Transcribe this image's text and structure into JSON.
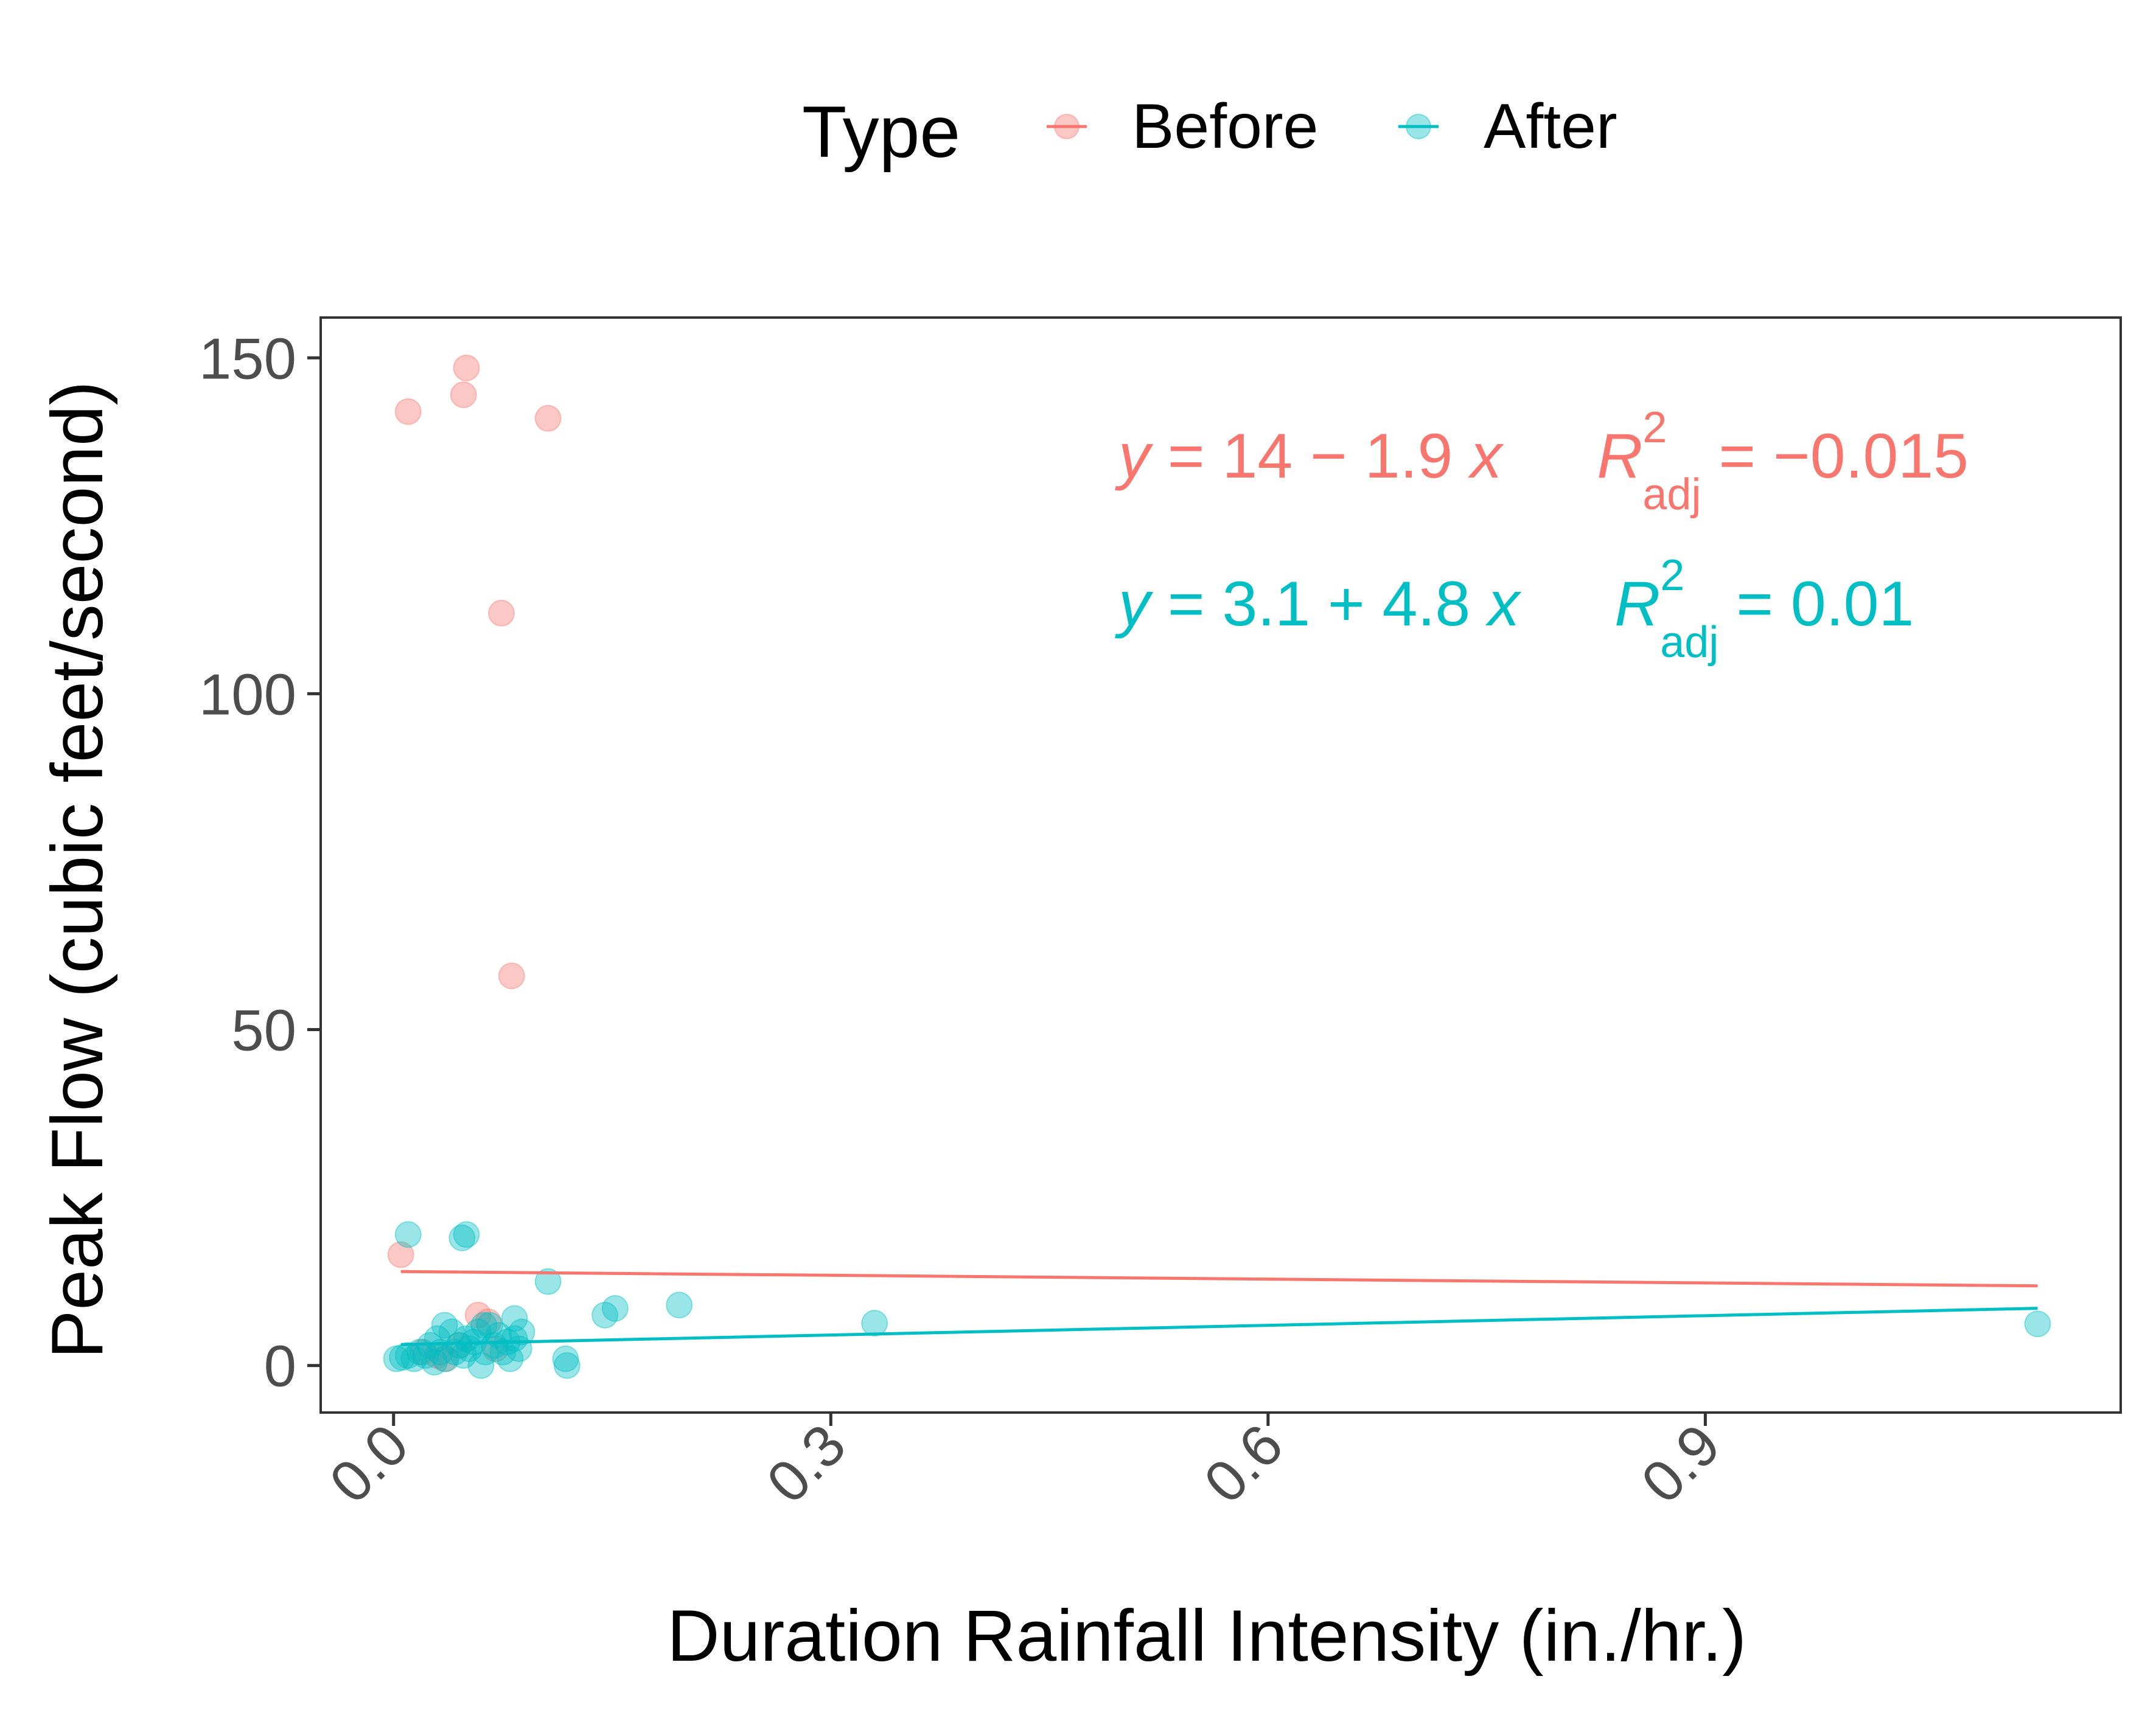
{
  "chart_data": {
    "type": "scatter",
    "title": "",
    "xlabel": "Duration Rainfall Intensity (in./hr.)",
    "ylabel": "Peak Flow (cubic feet/second)",
    "xlim": [
      -0.05,
      1.185
    ],
    "ylim": [
      -7,
      156
    ],
    "x_ticks": [
      0.0,
      0.3,
      0.6,
      0.9
    ],
    "x_tick_labels": [
      "0.0",
      "0.3",
      "0.6",
      "0.9"
    ],
    "y_ticks": [
      0,
      50,
      100,
      150
    ],
    "y_tick_labels": [
      "0",
      "50",
      "100",
      "150"
    ],
    "grid": false,
    "legend": {
      "title": "Type",
      "placement": "top",
      "entries": [
        "Before",
        "After"
      ]
    },
    "series": [
      {
        "name": "Before",
        "color": "#F8766D",
        "points": [
          [
            0.01,
            142
          ],
          [
            0.048,
            144.5
          ],
          [
            0.05,
            148.5
          ],
          [
            0.106,
            141
          ],
          [
            0.074,
            112
          ],
          [
            0.081,
            58
          ],
          [
            0.005,
            16.5
          ],
          [
            0.058,
            7.5
          ],
          [
            0.065,
            6.5
          ],
          [
            0.02,
            2
          ],
          [
            0.03,
            1.5
          ],
          [
            0.045,
            3
          ],
          [
            0.07,
            2.5
          ],
          [
            0.035,
            1
          ]
        ],
        "fit": {
          "intercept": 14,
          "slope": -1.9,
          "x_range": [
            0.005,
            1.128
          ]
        },
        "equation": {
          "y": "y",
          "eq": " = 14 − 1.9 ",
          "x": "x",
          "r": "R",
          "sup": "2",
          "sub": "adj",
          "val": " = −0.015"
        }
      },
      {
        "name": "After",
        "color": "#00BFC4",
        "points": [
          [
            0.01,
            19.5
          ],
          [
            0.047,
            19
          ],
          [
            0.05,
            19.5
          ],
          [
            0.106,
            12.5
          ],
          [
            0.083,
            7
          ],
          [
            0.062,
            6
          ],
          [
            0.035,
            6
          ],
          [
            0.002,
            1
          ],
          [
            0.006,
            1.2
          ],
          [
            0.01,
            1.5
          ],
          [
            0.014,
            1
          ],
          [
            0.018,
            2
          ],
          [
            0.022,
            1.5
          ],
          [
            0.025,
            3
          ],
          [
            0.028,
            0.5
          ],
          [
            0.03,
            4
          ],
          [
            0.032,
            2
          ],
          [
            0.036,
            1
          ],
          [
            0.04,
            5
          ],
          [
            0.042,
            2
          ],
          [
            0.045,
            3
          ],
          [
            0.048,
            1.5
          ],
          [
            0.05,
            4
          ],
          [
            0.052,
            2.5
          ],
          [
            0.055,
            3.5
          ],
          [
            0.058,
            5
          ],
          [
            0.06,
            0
          ],
          [
            0.063,
            2
          ],
          [
            0.066,
            6
          ],
          [
            0.069,
            3
          ],
          [
            0.072,
            4.5
          ],
          [
            0.075,
            2
          ],
          [
            0.078,
            3.5
          ],
          [
            0.08,
            1
          ],
          [
            0.083,
            4
          ],
          [
            0.086,
            2.5
          ],
          [
            0.088,
            5
          ],
          [
            0.118,
            1
          ],
          [
            0.119,
            0
          ],
          [
            0.145,
            7.5
          ],
          [
            0.152,
            8.5
          ],
          [
            0.196,
            9
          ],
          [
            0.33,
            6.3
          ],
          [
            1.128,
            6.2
          ]
        ],
        "fit": {
          "intercept": 3.1,
          "slope": 4.8,
          "x_range": [
            0.005,
            1.128
          ]
        },
        "equation": {
          "y": "y",
          "eq": " = 3.1 + 4.8 ",
          "x": "x",
          "r": "R",
          "sup": "2",
          "sub": "adj",
          "val": " = 0.01"
        }
      }
    ]
  }
}
